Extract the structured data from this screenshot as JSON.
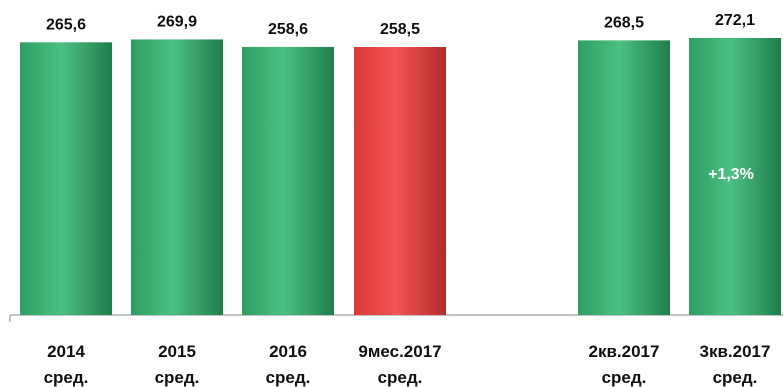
{
  "chart_data": {
    "type": "bar",
    "categories": [
      [
        "2014",
        "сред."
      ],
      [
        "2015",
        "сред."
      ],
      [
        "2016",
        "сред."
      ],
      [
        "9мес.2017",
        "сред."
      ],
      [
        "2кв.2017",
        "сред."
      ],
      [
        "3кв.2017",
        "сред."
      ]
    ],
    "values": [
      265.6,
      269.9,
      258.6,
      258.5,
      268.5,
      272.1
    ],
    "value_labels": [
      "265,6",
      "269,9",
      "258,6",
      "258,5",
      "268,5",
      "272,1"
    ],
    "highlight_index": 3,
    "annotation": {
      "text": "+1,3%",
      "bar_index": 5
    },
    "colors": {
      "bar": "#2e9e62",
      "bar_light": "#4cc083",
      "bar_dark": "#1f7e4b",
      "highlight": "#d93838",
      "highlight_light": "#f25555",
      "highlight_dark": "#b42a2a",
      "axis": "#888888"
    },
    "grid": false,
    "legend": "none"
  }
}
